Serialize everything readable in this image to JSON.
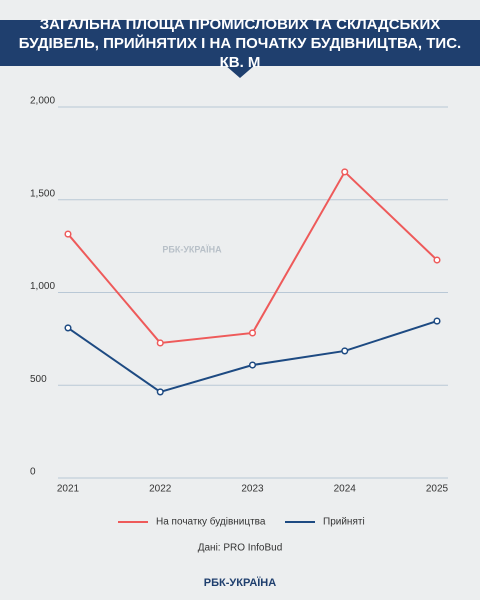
{
  "chart_data": {
    "type": "line",
    "title": "ЗАГАЛЬНА ПЛОЩА ПРОМИСЛОВИХ ТА СКЛАДСЬКИХ БУДІВЕЛЬ, ПРИЙНЯТИХ І НА ПОЧАТКУ БУДІВНИЦТВА, ТИС. КВ. М",
    "categories": [
      "2021",
      "2022",
      "2023",
      "2024",
      "2025"
    ],
    "series": [
      {
        "name": "На початку будівництва",
        "color": "#ee5a5a",
        "values": [
          1315,
          728,
          782,
          1650,
          1175
        ]
      },
      {
        "name": "Прийняті",
        "color": "#1d4a82",
        "values": [
          809,
          464,
          609,
          685,
          846
        ]
      }
    ],
    "ylim": [
      0,
      2000
    ],
    "yticks": [
      0,
      500,
      {
        "value": 1000,
        "label": "1,000"
      },
      {
        "value": 1500,
        "label": "1,500"
      },
      {
        "value": 2000,
        "label": "2,000"
      }
    ],
    "grid": true,
    "source": "Дані: PRO InfoBud",
    "logo": "РБК-УКРАЇНА"
  }
}
